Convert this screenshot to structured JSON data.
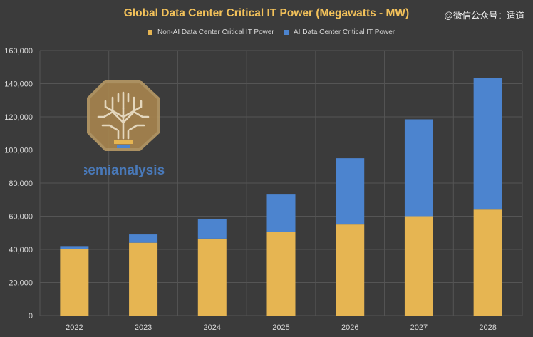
{
  "watermark": "@微信公众号：适道",
  "logo": {
    "brand_text": "semianalysis"
  },
  "colors": {
    "non_ai": "#e6b552",
    "ai": "#4c84cf",
    "title": "#f2c15a",
    "grid": "#555555"
  },
  "chart_data": {
    "type": "bar",
    "stacked": true,
    "title": "Global Data Center Critical IT Power (Megawatts - MW)",
    "categories": [
      "2022",
      "2023",
      "2024",
      "2025",
      "2026",
      "2027",
      "2028"
    ],
    "series": [
      {
        "name": "Non-AI Data Center Critical IT Power",
        "values": [
          40000,
          44000,
          46500,
          50500,
          55000,
          60000,
          64000
        ]
      },
      {
        "name": "AI Data Center Critical IT Power",
        "values": [
          2000,
          5000,
          12000,
          23000,
          40000,
          58500,
          79500
        ]
      }
    ],
    "ylim": [
      0,
      160000
    ],
    "yticks": [
      "0",
      "20,000",
      "40,000",
      "60,000",
      "80,000",
      "100,000",
      "120,000",
      "140,000",
      "160,000"
    ],
    "grid": true,
    "legend_position": "top"
  }
}
